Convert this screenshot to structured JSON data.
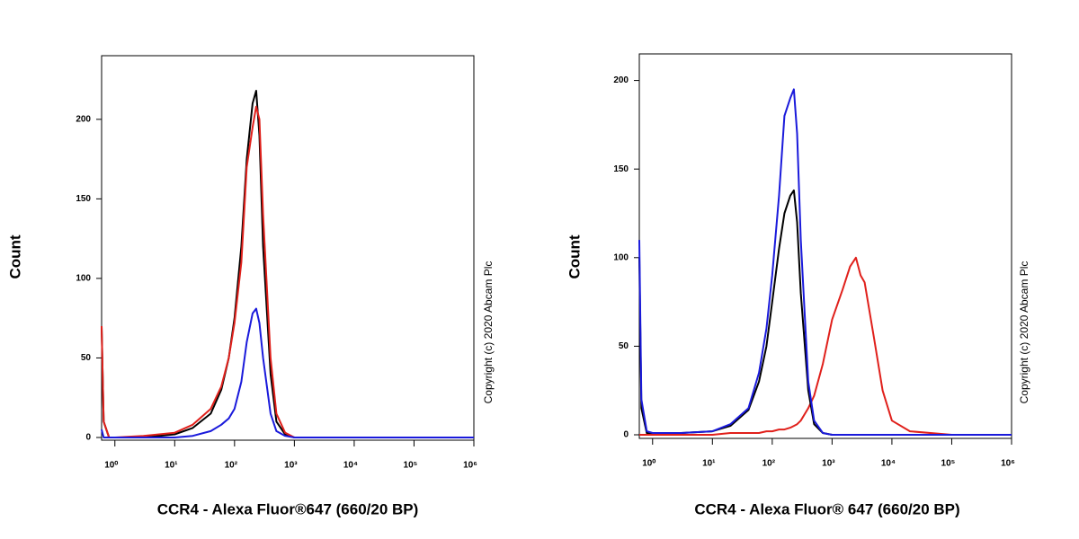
{
  "chart_data": [
    {
      "type": "line",
      "xscale": "log",
      "x_label": "CCR4 - Alexa Fluor®647 (660/20 BP)",
      "y_label": "Count",
      "annotation": "Copyright (c) 2020 Abcam Plc",
      "x": [
        0.6,
        0.65,
        0.8,
        1,
        3,
        10,
        20,
        40,
        60,
        80,
        100,
        130,
        160,
        200,
        230,
        260,
        300,
        400,
        500,
        700,
        1000,
        1500,
        2000,
        2500,
        3000,
        3500,
        5000,
        7000,
        10000,
        20000,
        100000,
        1000000
      ],
      "xlim": [
        0.6,
        1000000
      ],
      "xticks": [
        {
          "value": 1,
          "label": "10⁰"
        },
        {
          "value": 10,
          "label": "10¹"
        },
        {
          "value": 100,
          "label": "10²"
        },
        {
          "value": 1000,
          "label": "10³"
        },
        {
          "value": 10000,
          "label": "10⁴"
        },
        {
          "value": 100000,
          "label": "10⁵"
        },
        {
          "value": 1000000,
          "label": "10⁶"
        }
      ],
      "ylim": [
        0,
        240
      ],
      "yticks": [
        0,
        50,
        100,
        150,
        200
      ],
      "series": [
        {
          "color": "#000000",
          "values": [
            70,
            10,
            0,
            0,
            0,
            2,
            6,
            15,
            30,
            50,
            75,
            120,
            175,
            210,
            218,
            190,
            120,
            40,
            10,
            2,
            0,
            0,
            0,
            0,
            0,
            0,
            0,
            0,
            0,
            0,
            0,
            0
          ]
        },
        {
          "color": "#e0201b",
          "values": [
            70,
            10,
            0,
            0,
            1,
            3,
            8,
            18,
            32,
            50,
            72,
            110,
            170,
            195,
            208,
            200,
            140,
            50,
            15,
            3,
            0,
            0,
            0,
            0,
            0,
            0,
            0,
            0,
            0,
            0,
            0,
            0
          ]
        },
        {
          "color": "#1a1adb",
          "values": [
            5,
            0,
            0,
            0,
            0,
            0,
            1,
            4,
            8,
            12,
            18,
            35,
            60,
            78,
            81,
            72,
            50,
            15,
            4,
            1,
            0,
            0,
            0,
            0,
            0,
            0,
            0,
            0,
            0,
            0,
            0,
            0
          ]
        }
      ]
    },
    {
      "type": "line",
      "xscale": "log",
      "x_label": "CCR4 - Alexa Fluor® 647 (660/20 BP)",
      "y_label": "Count",
      "annotation": "Copyright (c) 2020 Abcam Plc",
      "x": [
        0.6,
        0.65,
        0.8,
        1,
        3,
        10,
        20,
        40,
        60,
        80,
        100,
        130,
        160,
        200,
        230,
        260,
        300,
        400,
        500,
        700,
        1000,
        1500,
        2000,
        2500,
        3000,
        3500,
        5000,
        7000,
        10000,
        20000,
        100000,
        1000000
      ],
      "xlim": [
        0.6,
        1000000
      ],
      "xticks": [
        {
          "value": 1,
          "label": "10⁰"
        },
        {
          "value": 10,
          "label": "10¹"
        },
        {
          "value": 100,
          "label": "10²"
        },
        {
          "value": 1000,
          "label": "10³"
        },
        {
          "value": 10000,
          "label": "10⁴"
        },
        {
          "value": 100000,
          "label": "10⁵"
        },
        {
          "value": 1000000,
          "label": "10⁶"
        }
      ],
      "ylim": [
        0,
        215
      ],
      "yticks": [
        0,
        50,
        100,
        150,
        200
      ],
      "series": [
        {
          "color": "#e0201b",
          "values": [
            0,
            0,
            0,
            0,
            0,
            0,
            1,
            1,
            1,
            2,
            2,
            3,
            3,
            4,
            5,
            6,
            8,
            15,
            22,
            40,
            65,
            82,
            95,
            100,
            90,
            86,
            55,
            25,
            8,
            2,
            0,
            0
          ]
        },
        {
          "color": "#000000",
          "values": [
            100,
            15,
            1,
            1,
            1,
            2,
            5,
            14,
            30,
            50,
            75,
            105,
            125,
            135,
            138,
            120,
            80,
            25,
            6,
            1,
            0,
            0,
            0,
            0,
            0,
            0,
            0,
            0,
            0,
            0,
            0,
            0
          ]
        },
        {
          "color": "#1a1adb",
          "values": [
            110,
            20,
            2,
            1,
            1,
            2,
            6,
            15,
            35,
            60,
            90,
            135,
            180,
            190,
            195,
            170,
            110,
            30,
            8,
            1,
            0,
            0,
            0,
            0,
            0,
            0,
            0,
            0,
            0,
            0,
            0,
            0
          ]
        }
      ]
    }
  ]
}
